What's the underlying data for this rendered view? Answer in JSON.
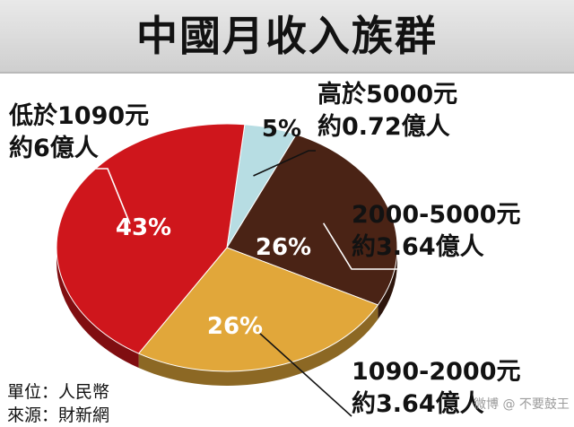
{
  "title": "中國月收入族群",
  "chart_data": {
    "type": "pie",
    "title": "中國月收入族群",
    "slices": [
      {
        "label": "高於5000元",
        "detail": "約0.72億人",
        "value": 5,
        "value_label": "5%",
        "color": "#b7dde3"
      },
      {
        "label": "2000-5000元",
        "detail": "約3.64億人",
        "value": 26,
        "value_label": "26%",
        "color": "#4a2315"
      },
      {
        "label": "1090-2000元",
        "detail": "約3.64億人",
        "value": 26,
        "value_label": "26%",
        "color": "#e1a73a"
      },
      {
        "label": "低於1090元",
        "detail": "約6億人",
        "value": 43,
        "value_label": "43%",
        "color": "#cf161c"
      }
    ]
  },
  "footnote": {
    "unit": "單位：人民幣",
    "source": "來源：財新網"
  },
  "watermark": "微博 @ 不要鼓王"
}
